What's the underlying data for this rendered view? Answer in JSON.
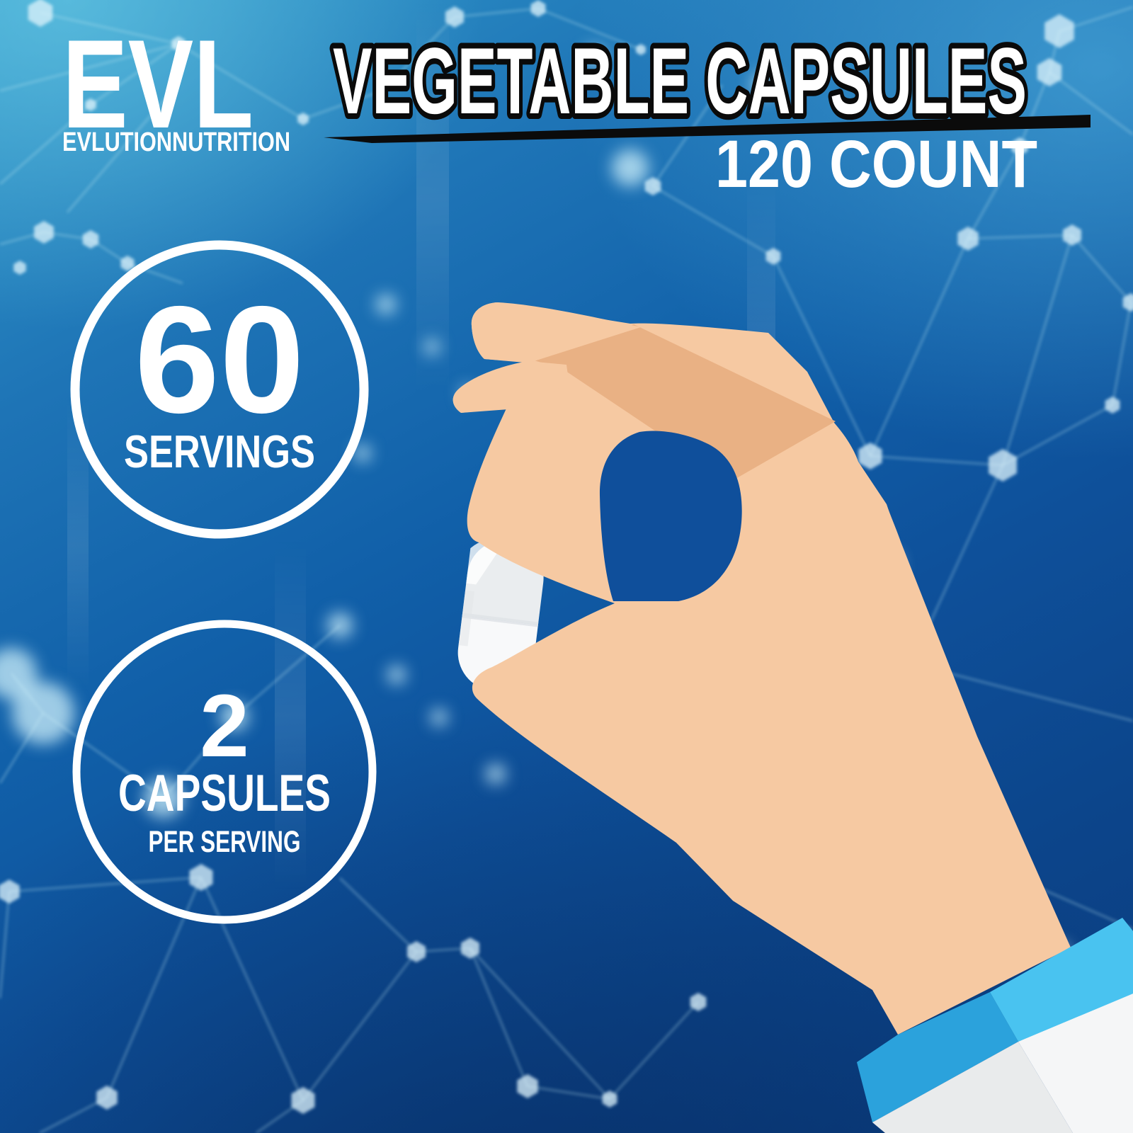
{
  "brand": {
    "logo": "EVL",
    "subtext": "EVLUTIONNUTRITION"
  },
  "header": {
    "title": "VEGETABLE CAPSULES",
    "count": "120 COUNT"
  },
  "badges": {
    "servings": {
      "value": "60",
      "label": "SERVINGS"
    },
    "dose": {
      "value": "2",
      "label": "CAPSULES",
      "sublabel": "PER SERVING"
    }
  },
  "illustration": {
    "hand_icon": "hand-pinching-capsule-icon",
    "capsule_icon": "white-capsule-icon"
  },
  "colors": {
    "background_blue": "#1160A9",
    "background_navy": "#0A3C7E",
    "background_cyan_glow": "#78D7EB",
    "plexus": "#BFE9F2",
    "skin": "#F6C9A2",
    "skin_shade": "#E9B184",
    "hole_blue": "#0F4F9B",
    "cuff_blue": "#2BA2DC",
    "cuff_blue_light": "#49C3F0",
    "sleeve_grey": "#E9EBEC",
    "sleeve_white": "#F5F6F7",
    "capsule_top": "#EAEDEF",
    "capsule_bottom": "#F8F9FA",
    "text_white": "#FFFFFF",
    "title_outline": "#0A0A0A",
    "swoosh_black": "#0B0B0B"
  }
}
